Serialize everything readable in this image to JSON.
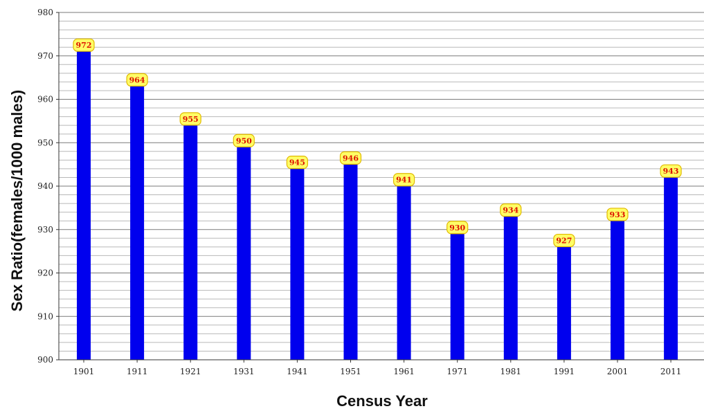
{
  "chart_data": {
    "type": "bar",
    "title": "",
    "xlabel": "Census Year",
    "ylabel": "Sex Ratio(females/1000 males)",
    "categories": [
      "1901",
      "1911",
      "1921",
      "1931",
      "1941",
      "1951",
      "1961",
      "1971",
      "1981",
      "1991",
      "2001",
      "2011"
    ],
    "values": [
      972,
      964,
      955,
      950,
      945,
      946,
      941,
      930,
      934,
      927,
      933,
      943
    ],
    "ylim": [
      900,
      980
    ],
    "yticks": [
      900,
      910,
      920,
      930,
      940,
      950,
      960,
      970,
      980
    ],
    "grid": true,
    "legend": "none",
    "data_labels": [
      "972",
      "964",
      "955",
      "950",
      "945",
      "946",
      "941",
      "930",
      "934",
      "927",
      "933",
      "943"
    ],
    "colors": {
      "bar": "#0000ee",
      "label_background": "#ffff66",
      "label_border": "#e0b800",
      "label_text": "#dd1100",
      "grid": "#7a7a7a"
    }
  }
}
